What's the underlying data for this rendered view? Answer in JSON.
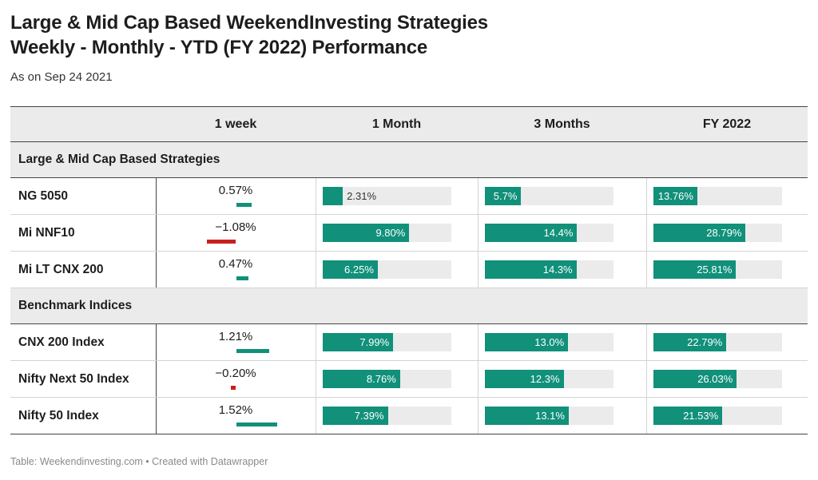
{
  "title_line1": "Large & Mid Cap Based WeekendInvesting Strategies",
  "title_line2": "Weekly - Monthly - YTD (FY 2022) Performance",
  "subtitle": "As on Sep 24 2021",
  "footer": "Table: Weekendinvesting.com • Created with Datawrapper",
  "colors": {
    "positive": "#11907a",
    "negative": "#c8201e",
    "track": "#ebebeb"
  },
  "chart_data": {
    "type": "table",
    "columns": [
      "",
      "1 week",
      "1 Month",
      "3 Months",
      "FY 2022"
    ],
    "bar_max": {
      "1 week": 2,
      "1 Month": 14.5,
      "3 Months": 20,
      "FY 2022": 40
    },
    "groups": [
      {
        "name": "Large & Mid Cap Based Strategies",
        "rows": [
          {
            "name": "NG 5050",
            "week": 0.57,
            "week_label": "0.57%",
            "month": 2.31,
            "month_label": "2.31%",
            "m3": 5.7,
            "m3_label": "5.7%",
            "fy": 13.76,
            "fy_label": "13.76%"
          },
          {
            "name": "Mi NNF10",
            "week": -1.08,
            "week_label": "−1.08%",
            "month": 9.8,
            "month_label": "9.80%",
            "m3": 14.4,
            "m3_label": "14.4%",
            "fy": 28.79,
            "fy_label": "28.79%"
          },
          {
            "name": "Mi LT CNX 200",
            "week": 0.47,
            "week_label": "0.47%",
            "month": 6.25,
            "month_label": "6.25%",
            "m3": 14.3,
            "m3_label": "14.3%",
            "fy": 25.81,
            "fy_label": "25.81%"
          }
        ]
      },
      {
        "name": "Benchmark Indices",
        "rows": [
          {
            "name": "CNX 200 Index",
            "week": 1.21,
            "week_label": "1.21%",
            "month": 7.99,
            "month_label": "7.99%",
            "m3": 13.0,
            "m3_label": "13.0%",
            "fy": 22.79,
            "fy_label": "22.79%"
          },
          {
            "name": "Nifty Next 50 Index",
            "week": -0.2,
            "week_label": "−0.20%",
            "month": 8.76,
            "month_label": "8.76%",
            "m3": 12.3,
            "m3_label": "12.3%",
            "fy": 26.03,
            "fy_label": "26.03%"
          },
          {
            "name": "Nifty 50 Index",
            "week": 1.52,
            "week_label": "1.52%",
            "month": 7.39,
            "month_label": "7.39%",
            "m3": 13.1,
            "m3_label": "13.1%",
            "fy": 21.53,
            "fy_label": "21.53%"
          }
        ]
      }
    ]
  }
}
